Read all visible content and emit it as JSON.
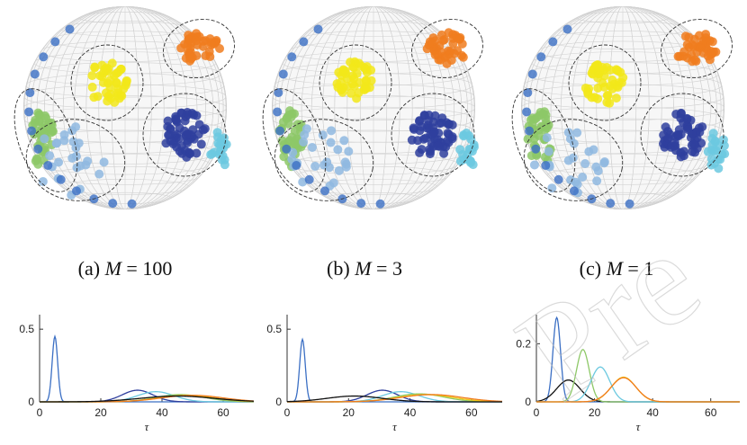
{
  "figure": {
    "captions": [
      {
        "label": "(a) ",
        "var": "M",
        "eq": " = ",
        "value": "100"
      },
      {
        "label": "(b) ",
        "var": "M",
        "eq": " = ",
        "value": "3"
      },
      {
        "label": "(c) ",
        "var": "M",
        "eq": " = ",
        "value": "1"
      }
    ],
    "watermark": "Pre"
  },
  "colors": {
    "orange": "#f07c1e",
    "yellow": "#f2e71a",
    "navy": "#2f3f9e",
    "lightgreen": "#8dc867",
    "cyan": "#6cc9e0",
    "blue_light": "#8fb8e0",
    "blue_mid": "#3b6fc4",
    "black": "#111111"
  },
  "chart_data": [
    {
      "type": "line",
      "xlabel": "τ",
      "xlim": [
        0,
        70
      ],
      "ylim": [
        0,
        0.6
      ],
      "xticks": [
        0,
        20,
        40,
        60
      ],
      "yticks": [
        0,
        0.5
      ],
      "series": [
        {
          "color": "#3b6fc4",
          "mean": 5,
          "sd": 0.9,
          "peak": 0.45
        },
        {
          "color": "#2f3f9e",
          "mean": 32,
          "sd": 5,
          "peak": 0.08
        },
        {
          "color": "#6cc9e0",
          "mean": 38,
          "sd": 6,
          "peak": 0.07
        },
        {
          "color": "#8dc867",
          "mean": 46,
          "sd": 8,
          "peak": 0.05
        },
        {
          "color": "#f2c81a",
          "mean": 48,
          "sd": 9,
          "peak": 0.045
        },
        {
          "color": "#f07c1e",
          "mean": 50,
          "sd": 10,
          "peak": 0.045
        },
        {
          "color": "#111111",
          "mean": 45,
          "sd": 12,
          "peak": 0.04
        }
      ]
    },
    {
      "type": "line",
      "xlabel": "τ",
      "xlim": [
        0,
        70
      ],
      "ylim": [
        0,
        0.6
      ],
      "xticks": [
        0,
        20,
        40,
        60
      ],
      "yticks": [
        0,
        0.5
      ],
      "series": [
        {
          "color": "#3b6fc4",
          "mean": 5,
          "sd": 0.9,
          "peak": 0.43
        },
        {
          "color": "#2f3f9e",
          "mean": 31,
          "sd": 5,
          "peak": 0.08
        },
        {
          "color": "#6cc9e0",
          "mean": 37,
          "sd": 6,
          "peak": 0.07
        },
        {
          "color": "#8dc867",
          "mean": 43,
          "sd": 8,
          "peak": 0.055
        },
        {
          "color": "#f2c81a",
          "mean": 45,
          "sd": 9,
          "peak": 0.05
        },
        {
          "color": "#f07c1e",
          "mean": 47,
          "sd": 10,
          "peak": 0.05
        },
        {
          "color": "#111111",
          "mean": 22,
          "sd": 9,
          "peak": 0.04
        }
      ]
    },
    {
      "type": "line",
      "xlabel": "τ",
      "xlim": [
        0,
        70
      ],
      "ylim": [
        0,
        0.3
      ],
      "xticks": [
        0,
        20,
        40,
        60
      ],
      "yticks": [
        0,
        0.2
      ],
      "series": [
        {
          "color": "#3b6fc4",
          "mean": 7,
          "sd": 1.3,
          "peak": 0.29
        },
        {
          "color": "#111111",
          "mean": 11,
          "sd": 4,
          "peak": 0.075
        },
        {
          "color": "#8dc867",
          "mean": 16,
          "sd": 2.2,
          "peak": 0.18
        },
        {
          "color": "#6cc9e0",
          "mean": 22,
          "sd": 3.2,
          "peak": 0.12
        },
        {
          "color": "#f2c81a",
          "mean": 30,
          "sd": 4.2,
          "peak": 0.085
        },
        {
          "color": "#f07c1e",
          "mean": 30,
          "sd": 4.3,
          "peak": 0.083
        }
      ]
    }
  ]
}
